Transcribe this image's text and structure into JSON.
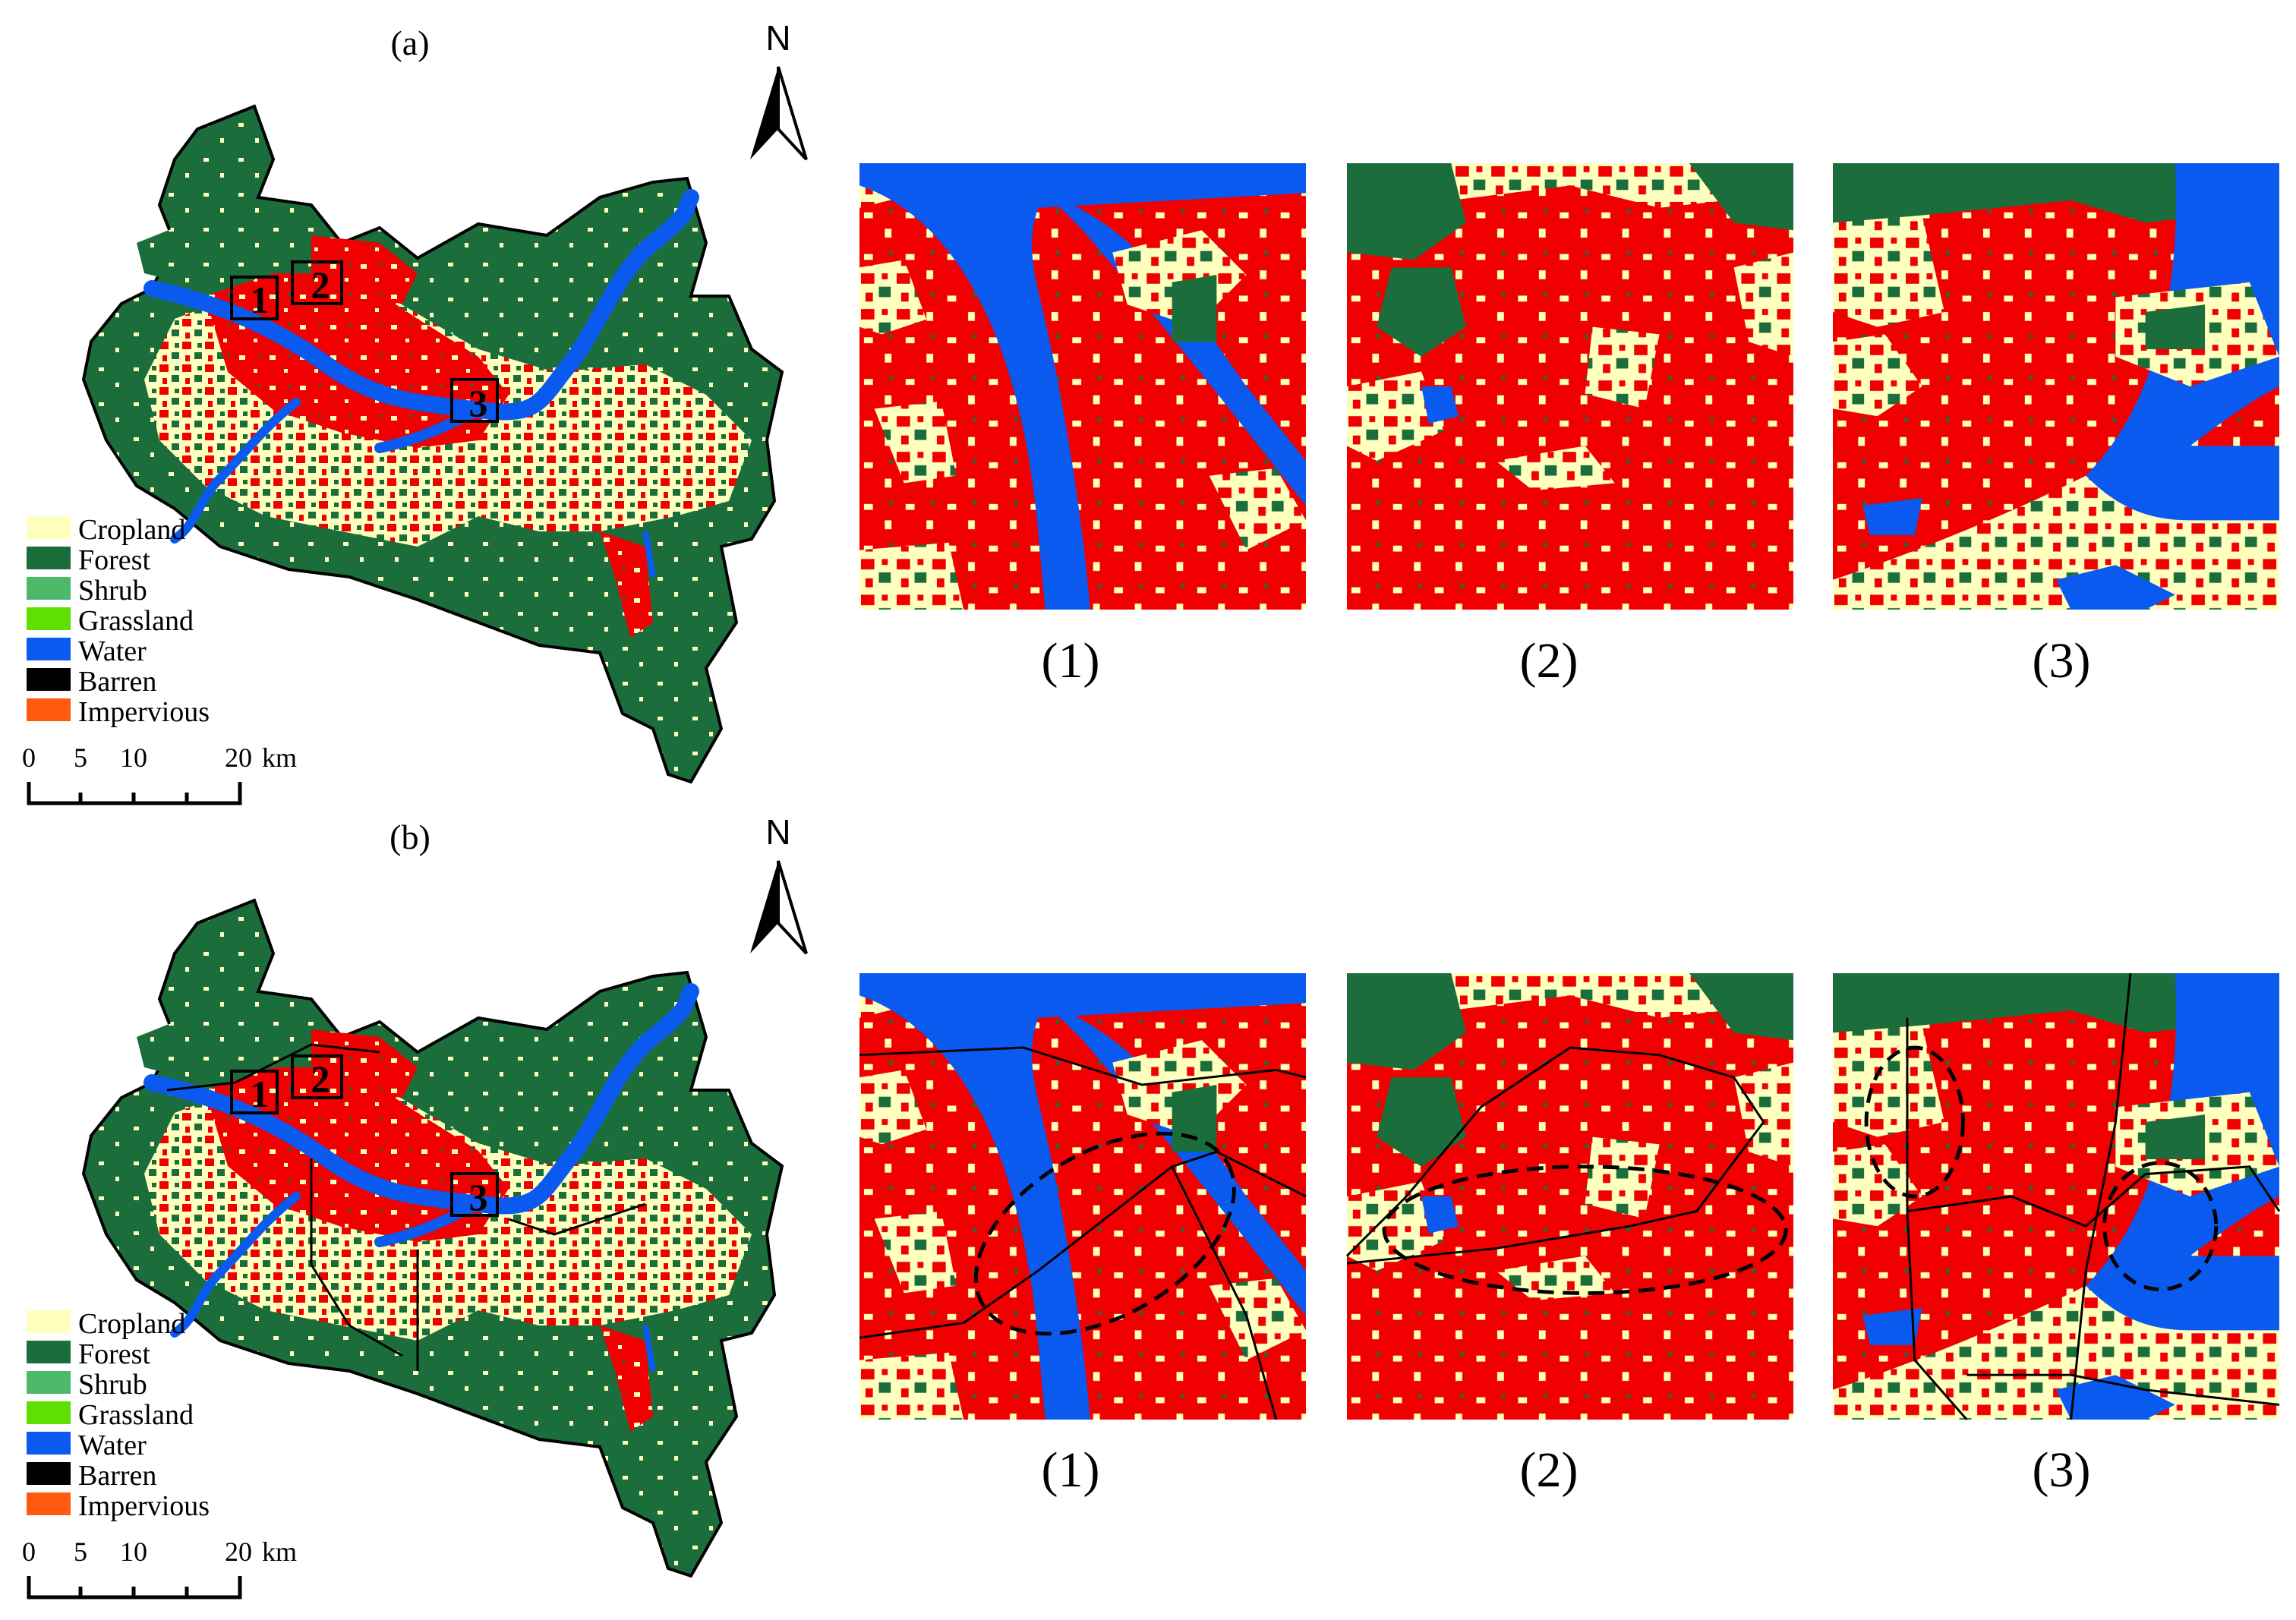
{
  "panels": [
    {
      "label": "(a)",
      "north": "N",
      "regions": [
        "1",
        "2",
        "3"
      ],
      "legend": [
        {
          "name": "Cropland",
          "color": "#FFFFBE"
        },
        {
          "name": "Forest",
          "color": "#1B6E3C"
        },
        {
          "name": "Shrub",
          "color": "#4CB86A"
        },
        {
          "name": "Grassland",
          "color": "#5EE000"
        },
        {
          "name": "Water",
          "color": "#0A5AF0"
        },
        {
          "name": "Barren",
          "color": "#000000"
        },
        {
          "name": "Impervious",
          "color": "#FF5A10"
        }
      ],
      "scale": {
        "ticks": [
          "0",
          "5",
          "10",
          "20"
        ],
        "unit": "km"
      },
      "zooms": [
        "(1)",
        "(2)",
        "(3)"
      ]
    },
    {
      "label": "(b)",
      "north": "N",
      "regions": [
        "1",
        "2",
        "3"
      ],
      "legend": [
        {
          "name": "Cropland",
          "color": "#FFFFBE"
        },
        {
          "name": "Forest",
          "color": "#1B6E3C"
        },
        {
          "name": "Shrub",
          "color": "#4CB86A"
        },
        {
          "name": "Grassland",
          "color": "#5EE000"
        },
        {
          "name": "Water",
          "color": "#0A5AF0"
        },
        {
          "name": "Barren",
          "color": "#000000"
        },
        {
          "name": "Impervious",
          "color": "#FF5A10"
        }
      ],
      "scale": {
        "ticks": [
          "0",
          "5",
          "10",
          "20"
        ],
        "unit": "km"
      },
      "zooms": [
        "(1)",
        "(2)",
        "(3)"
      ]
    }
  ],
  "colors": {
    "cropland": "#FFFFBE",
    "forest": "#1B6E3C",
    "impervious_map": "#F00000",
    "water": "#0A5AF0"
  }
}
